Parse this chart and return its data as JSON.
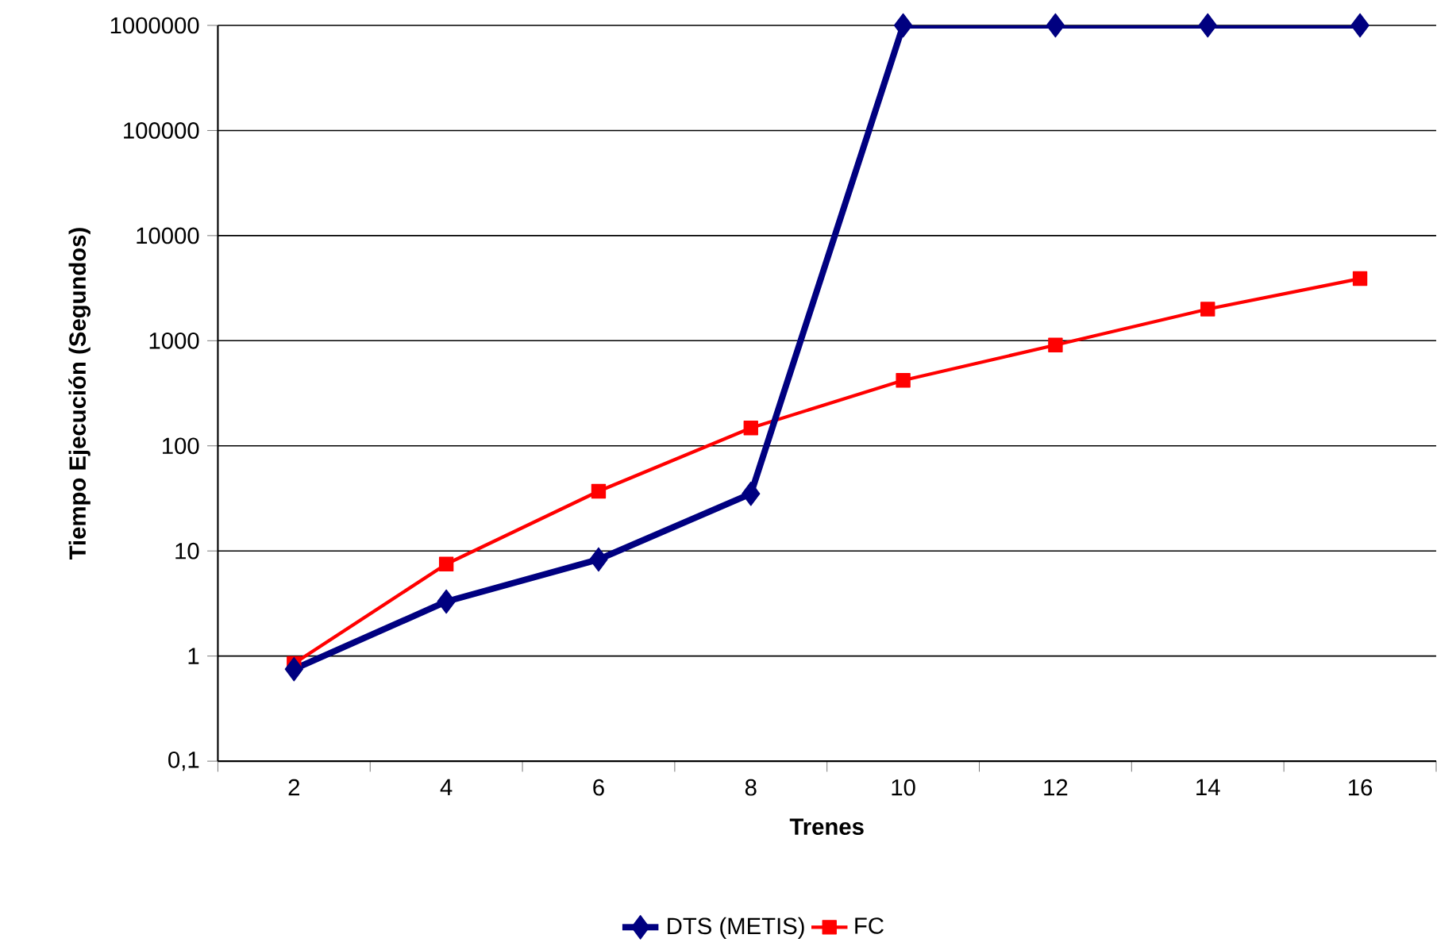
{
  "chart_data": {
    "type": "line",
    "xlabel": "Trenes",
    "ylabel": "Tiempo Ejecución (Segundos)",
    "categories": [
      "2",
      "4",
      "6",
      "8",
      "10",
      "12",
      "14",
      "16"
    ],
    "series": [
      {
        "name": "DTS (METIS)",
        "color": "#000080",
        "marker": "diamond",
        "values": [
          0.75,
          3.3,
          8.3,
          35,
          1000000,
          1000000,
          1000000,
          1000000
        ]
      },
      {
        "name": "FC",
        "color": "#ff0000",
        "marker": "square",
        "values": [
          0.85,
          7.5,
          37,
          148,
          420,
          910,
          2000,
          3900
        ]
      }
    ],
    "log": "y",
    "ylim": [
      0.1,
      1000000
    ],
    "yticks": [
      {
        "value": 0.1,
        "label": "0,1"
      },
      1,
      10,
      100,
      1000,
      10000,
      100000,
      1000000
    ],
    "grid": "y",
    "legend": "bottom",
    "line_style": "solid"
  }
}
